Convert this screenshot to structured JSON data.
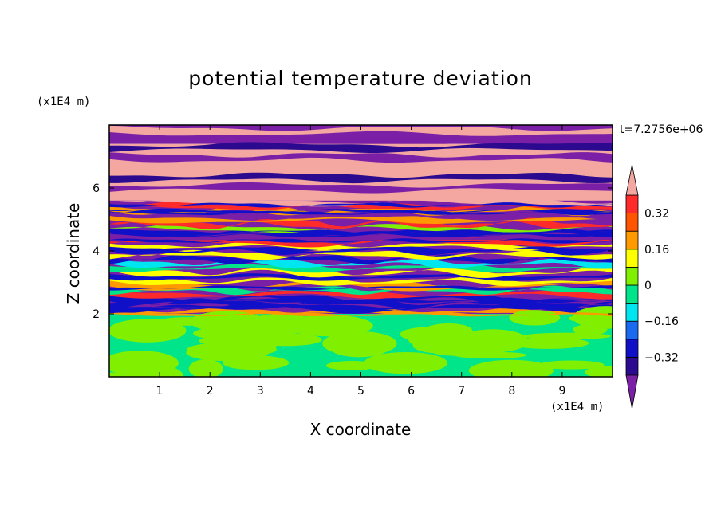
{
  "chart_data": {
    "type": "heatmap",
    "title": "potential temperature deviation",
    "xlabel": "X coordinate",
    "ylabel": "Z coordinate",
    "x_unit": "(x1E4 m)",
    "y_unit": "(x1E4 m)",
    "time_label": "t=7.2756e+06",
    "xlim": [
      0,
      10
    ],
    "ylim": [
      0,
      8
    ],
    "x_ticks": [
      "1",
      "2",
      "3",
      "4",
      "5",
      "6",
      "7",
      "8",
      "9"
    ],
    "x_tick_values": [
      1,
      2,
      3,
      4,
      5,
      6,
      7,
      8,
      9
    ],
    "y_ticks": [
      "2",
      "4",
      "6"
    ],
    "y_tick_values": [
      2,
      4,
      6
    ],
    "colorbar": {
      "levels": [
        -0.48,
        -0.4,
        -0.32,
        -0.24,
        -0.16,
        -0.08,
        0,
        0.08,
        0.16,
        0.24,
        0.32,
        0.4,
        0.48
      ],
      "tick_labels": [
        "0.32",
        "0.16",
        "0",
        "−0.16",
        "−0.32"
      ],
      "tick_values": [
        0.32,
        0.16,
        0,
        -0.16,
        -0.32
      ],
      "colors": [
        "#7a1fa6",
        "#2b0a8f",
        "#1010c8",
        "#1a6af0",
        "#00e6f0",
        "#00e58a",
        "#80f000",
        "#ffff00",
        "#ff9900",
        "#ff5500",
        "#ff2a2a",
        "#f4a6a0"
      ],
      "extend": "both"
    },
    "layers": [
      {
        "z_range": [
          7.4,
          8.0
        ],
        "pattern": "stripes",
        "colors": [
          "#7a1fa6",
          "#f4a6a0"
        ]
      },
      {
        "z_range": [
          5.6,
          7.4
        ],
        "pattern": "stripes",
        "colors": [
          "#f4a6a0",
          "#7a1fa6",
          "#2b0a8f"
        ]
      },
      {
        "z_range": [
          2.0,
          5.6
        ],
        "pattern": "turbulent",
        "colors": [
          "#7a1fa6",
          "#f4a6a0",
          "#00e6f0",
          "#00e58a",
          "#80f000",
          "#ffff00",
          "#ff9900",
          "#ff2a2a",
          "#1010c8"
        ]
      },
      {
        "z_range": [
          0.0,
          2.0
        ],
        "pattern": "patches",
        "colors": [
          "#00e58a",
          "#80f000"
        ]
      }
    ]
  }
}
